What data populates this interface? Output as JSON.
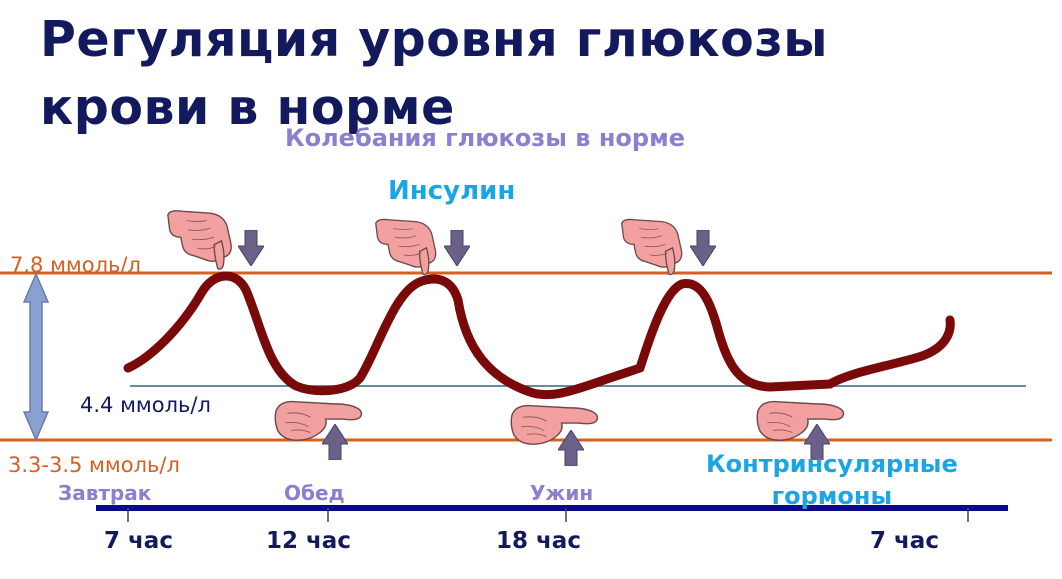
{
  "title_line1": "Регуляция уровня глюкозы",
  "title_line2": "крови в норме",
  "subtitle": "Колебания глюкозы в норме",
  "insulin_label": "Инсулин",
  "counter_hormones_line1": "Контринсулярные",
  "counter_hormones_line2": "гормоны",
  "levels": {
    "high": "7.8 ммоль/л",
    "norm": "4.4 ммоль/л",
    "low": "3.3-3.5 ммоль/л"
  },
  "meals": [
    "Завтрак",
    "Обед",
    "Ужин"
  ],
  "times": [
    "7 час",
    "12 час",
    "18 час",
    "7 час"
  ],
  "colors": {
    "title": "#12195c",
    "level_line": "#d66022",
    "norm_line": "#2e6a73",
    "glucose_curve": "#7a0a0a",
    "arrow": "#6a6088",
    "accent_blue": "#1aa6e6",
    "accent_violet": "#8a7fd0",
    "hand": "#f2a0a0",
    "timeline": "#0a0a8a"
  },
  "icons": [
    "hand-pointing-down-icon",
    "hand-palm-up-icon",
    "arrow-down-icon",
    "arrow-up-icon",
    "double-arrow-icon"
  ]
}
